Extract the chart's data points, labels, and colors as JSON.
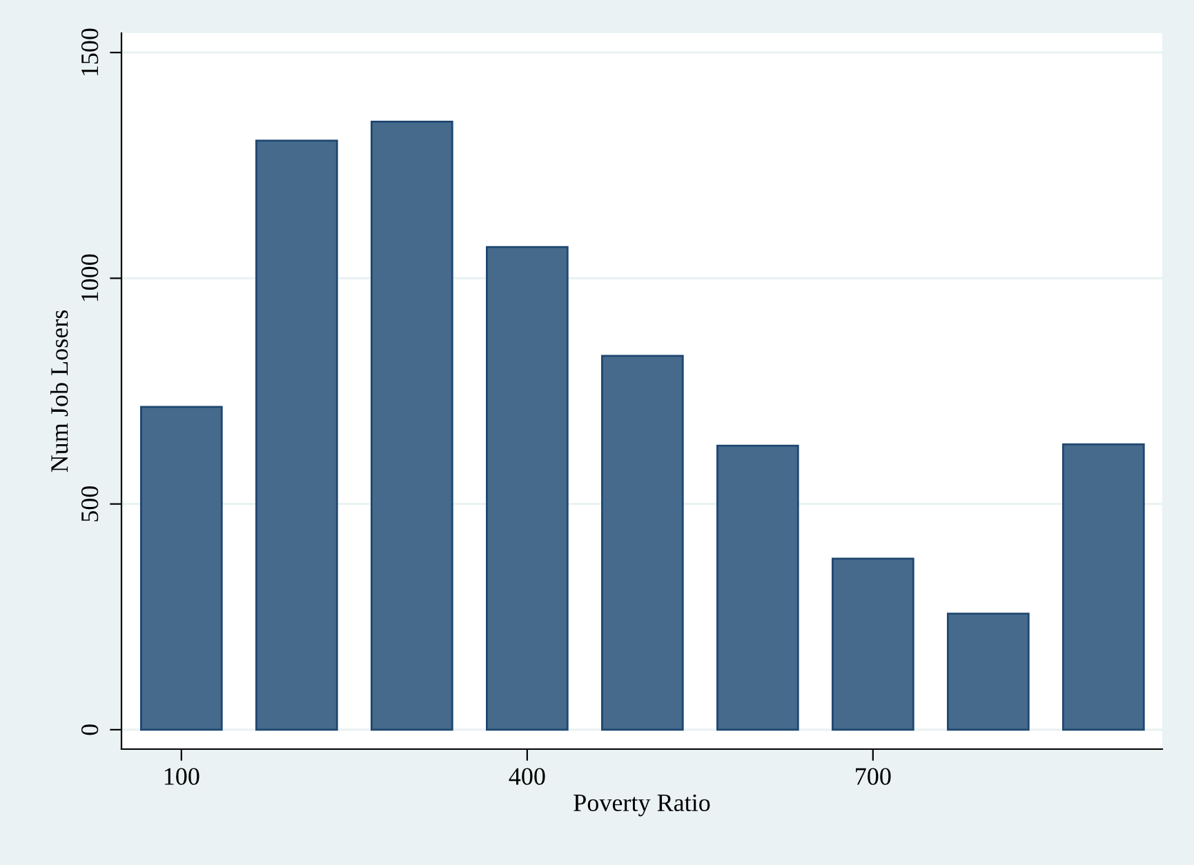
{
  "chart_data": {
    "type": "bar",
    "xlabel": "Poverty Ratio",
    "ylabel": "Num Job Losers",
    "x": [
      100,
      200,
      300,
      400,
      500,
      600,
      700,
      800,
      900
    ],
    "values": [
      715,
      1305,
      1347,
      1069,
      828,
      629,
      379,
      257,
      632
    ],
    "color": "#466a8c",
    "xlim": [
      48,
      951
    ],
    "xticks": [
      100,
      400,
      700
    ],
    "ylim": [
      -43,
      1543
    ],
    "yticks": [
      0,
      500,
      1000,
      1500
    ],
    "grid": "y"
  }
}
